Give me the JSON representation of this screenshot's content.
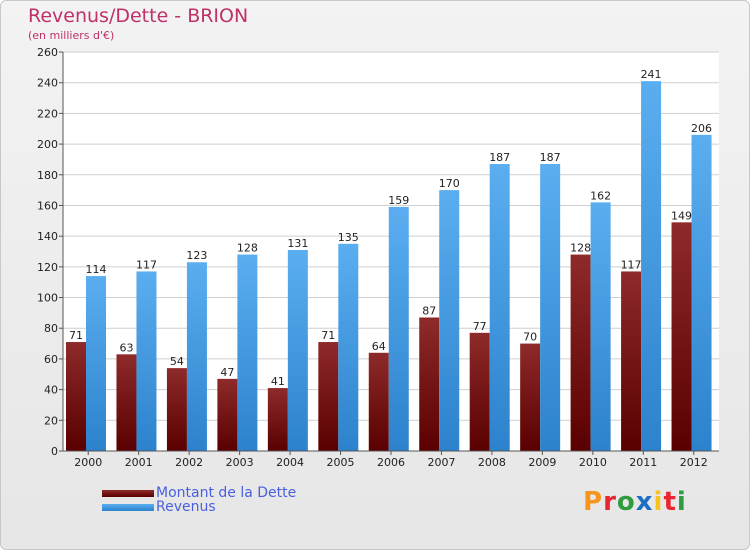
{
  "header": {
    "title": "Revenus/Dette - BRION",
    "subtitle": "(en milliers d'€)"
  },
  "legend": {
    "position": "bottom-left",
    "items": [
      {
        "label": "Montant de la Dette",
        "color": "#7a0f0f"
      },
      {
        "label": "Revenus",
        "color": "#4aa3e8"
      }
    ]
  },
  "logo": {
    "text": "Proxiti"
  },
  "chart_data": {
    "type": "bar",
    "title": "Revenus/Dette - BRION",
    "subtitle": "(en milliers d'€)",
    "categories": [
      "2000",
      "2001",
      "2002",
      "2003",
      "2004",
      "2005",
      "2006",
      "2007",
      "2008",
      "2009",
      "2010",
      "2011",
      "2012"
    ],
    "series": [
      {
        "name": "Montant de la Dette",
        "color": "#7a0f0f",
        "values": [
          71,
          63,
          54,
          47,
          41,
          71,
          64,
          87,
          77,
          70,
          128,
          117,
          149
        ]
      },
      {
        "name": "Revenus",
        "color": "#4aa3e8",
        "values": [
          114,
          117,
          123,
          128,
          131,
          135,
          159,
          170,
          187,
          187,
          162,
          241,
          206
        ]
      }
    ],
    "ylim": [
      0,
      260
    ],
    "yticks": [
      0,
      20,
      40,
      60,
      80,
      100,
      120,
      140,
      160,
      180,
      200,
      220,
      240,
      260
    ],
    "grid": true
  }
}
